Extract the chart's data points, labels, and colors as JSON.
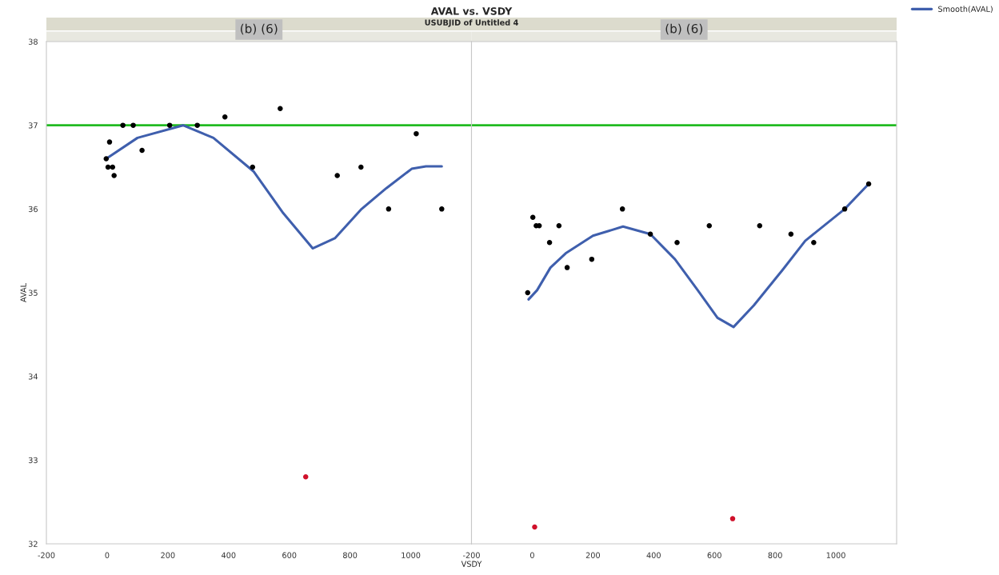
{
  "chart_data": [
    {
      "type": "scatter",
      "title": "AVAL vs. VSDY",
      "subtitle": "USUBJID of Untitled 4",
      "xlabel": "VSDY",
      "ylabel": "AVAL",
      "annotations": [
        "(b) (6)"
      ],
      "series": [
        {
          "color": "#000000",
          "marker": "circle",
          "x": [
            -3,
            3,
            8,
            18,
            23,
            52,
            86,
            115,
            206,
            297,
            388,
            479,
            570,
            758,
            836,
            927,
            1018,
            1102
          ],
          "values": [
            36.6,
            36.5,
            36.8,
            36.5,
            36.4,
            37.0,
            37.0,
            36.7,
            37.0,
            37.0,
            37.1,
            36.5,
            37.2,
            36.4,
            36.5,
            36.0,
            36.9,
            36.0
          ]
        },
        {
          "color": "#d0112b",
          "marker": "circle",
          "x": [
            654
          ],
          "values": [
            32.8
          ]
        },
        {
          "type": "line",
          "color": "#3f5fad",
          "x": [
            -3,
            100,
            250,
            350,
            482,
            580,
            677,
            750,
            838,
            920,
            1003,
            1050,
            1102
          ],
          "values": [
            36.6,
            36.85,
            37.0,
            36.85,
            36.45,
            35.95,
            35.53,
            35.65,
            36.0,
            36.25,
            36.48,
            36.51,
            36.51
          ]
        }
      ],
      "xlim": [
        -200,
        1200
      ],
      "xticks": [
        -200,
        0,
        200,
        400,
        600,
        800,
        1000
      ],
      "ylim": [
        32,
        38
      ],
      "yticks": [
        32,
        33,
        34,
        35,
        36,
        37,
        38
      ],
      "ref_lines": [
        {
          "axis": "y",
          "value": 37,
          "color": "#22bb22"
        }
      ],
      "grid": false,
      "legend": false
    },
    {
      "type": "scatter",
      "annotations": [
        "(b) (6)"
      ],
      "series": [
        {
          "color": "#000000",
          "marker": "circle",
          "x": [
            -15,
            2,
            13,
            23,
            57,
            88,
            115,
            196,
            297,
            389,
            477,
            583,
            749,
            852,
            927,
            1029,
            1108
          ],
          "values": [
            35.0,
            35.9,
            35.8,
            35.8,
            35.6,
            35.8,
            35.3,
            35.4,
            36.0,
            35.7,
            35.6,
            35.8,
            35.8,
            35.7,
            35.6,
            36.0,
            36.3
          ]
        },
        {
          "color": "#d0112b",
          "marker": "circle",
          "x": [
            8,
            660
          ],
          "values": [
            32.2,
            32.3
          ]
        },
        {
          "type": "line",
          "name": "Smooth(AVAL)",
          "color": "#3f5fad",
          "x": [
            -12,
            16,
            60,
            110,
            200,
            299,
            389,
            470,
            545,
            610,
            663,
            730,
            826,
            899,
            1029,
            1108
          ],
          "values": [
            34.92,
            35.03,
            35.3,
            35.47,
            35.68,
            35.79,
            35.7,
            35.4,
            35.03,
            34.7,
            34.59,
            34.85,
            35.28,
            35.62,
            36.0,
            36.3
          ]
        }
      ],
      "xlim": [
        -200,
        1200
      ],
      "xticks": [
        -200,
        0,
        200,
        400,
        600,
        800,
        1000
      ],
      "ylim": [
        32,
        38
      ],
      "yticks": [
        32,
        33,
        34,
        35,
        36,
        37,
        38
      ],
      "tick_labels": "x",
      "ref_lines": [
        {
          "axis": "y",
          "value": 37,
          "color": "#22bb22"
        }
      ],
      "grid": false,
      "legend": "top right"
    }
  ]
}
